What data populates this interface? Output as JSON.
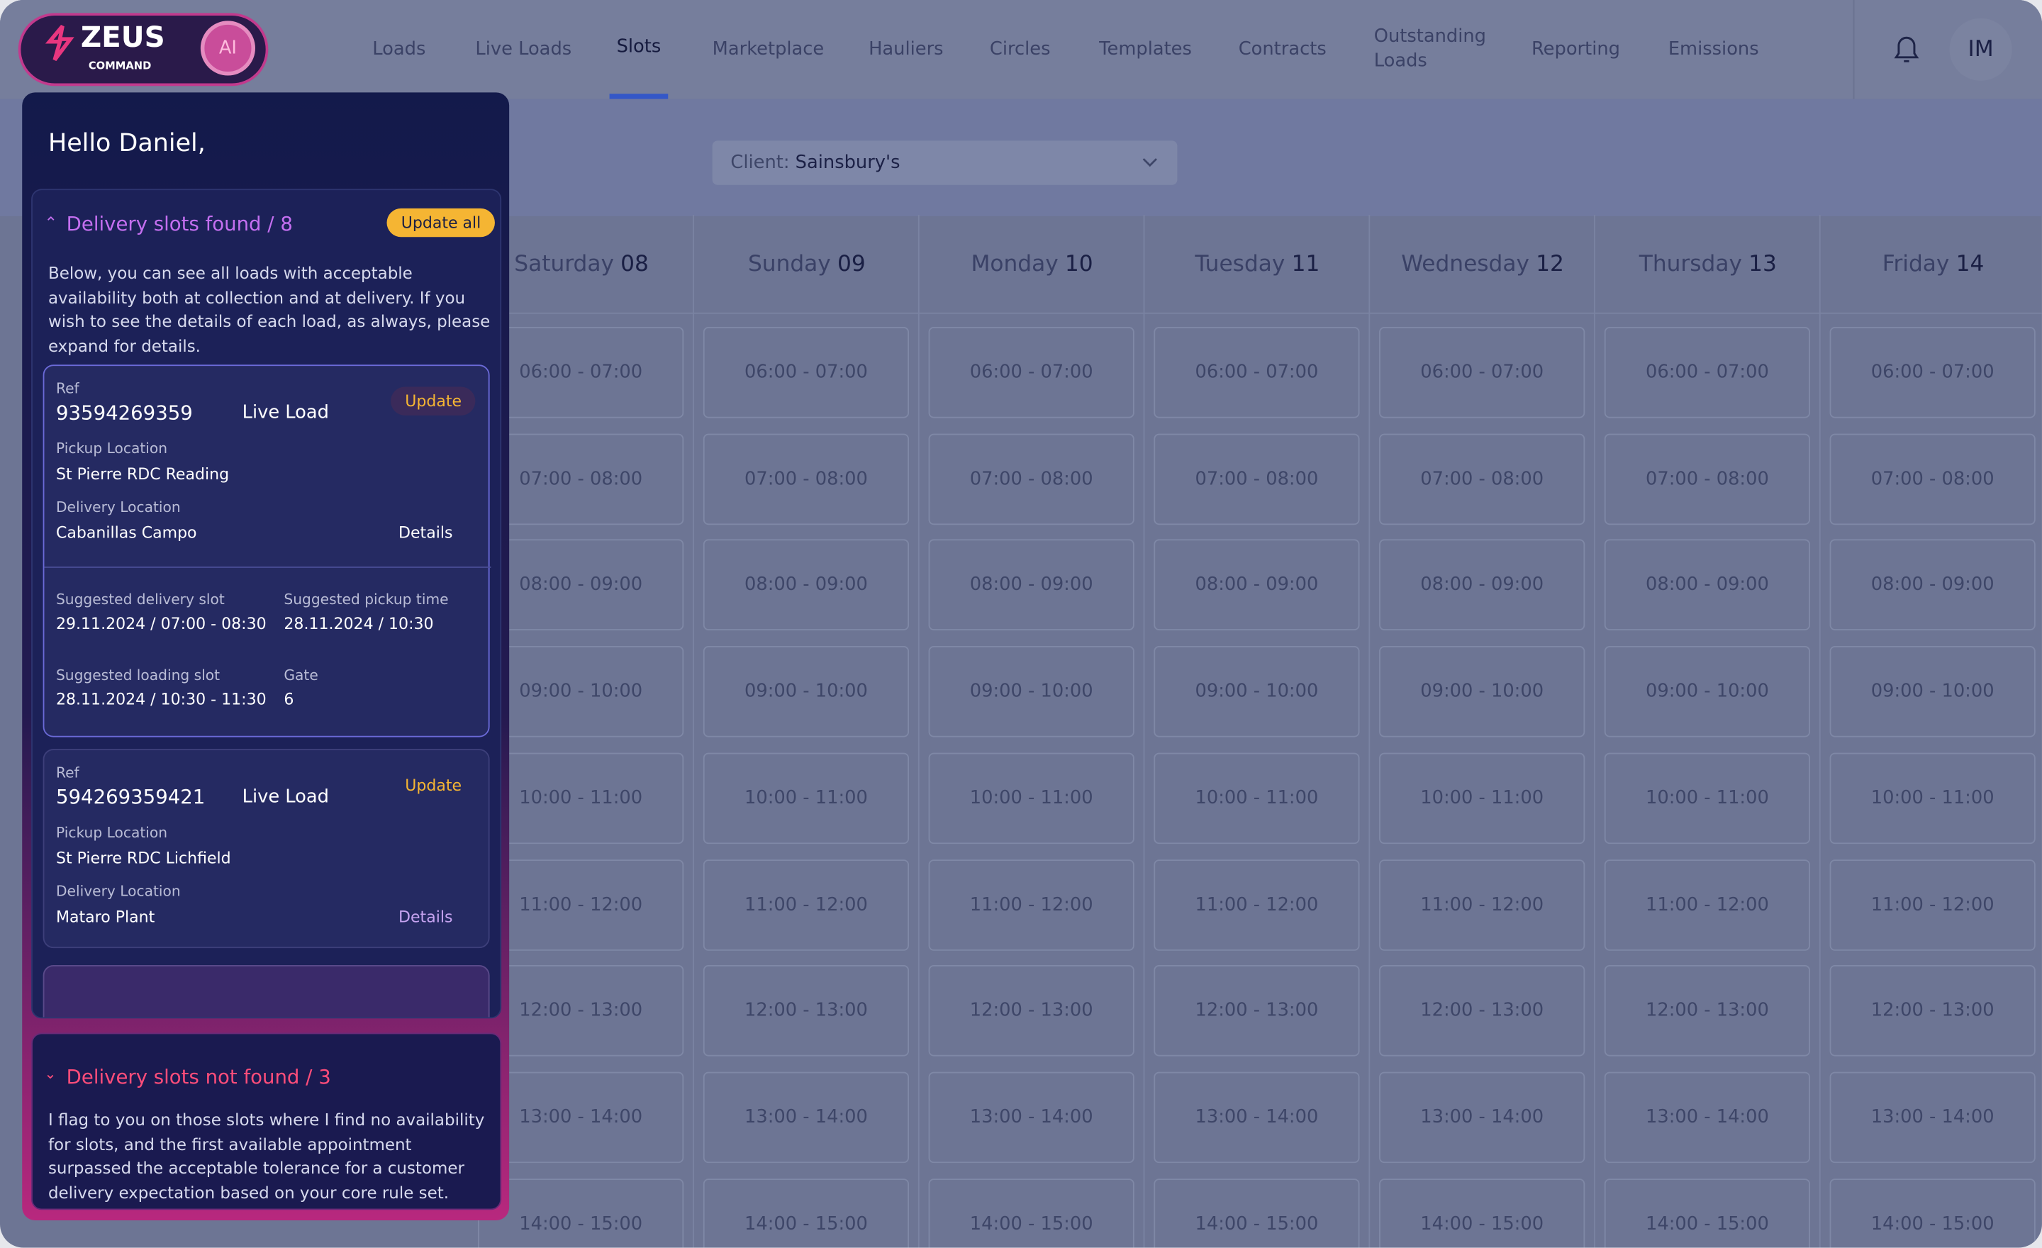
{
  "logo": {
    "name": "ZEUS",
    "sub": "COMMAND",
    "badge": "AI"
  },
  "nav": [
    "Loads",
    "Live Loads",
    "Slots",
    "Marketplace",
    "Hauliers",
    "Circles",
    "Templates",
    "Contracts",
    "Outstanding Loads",
    "Reporting",
    "Emissions"
  ],
  "user_initials": "IM",
  "client": {
    "label": "Client:",
    "value": "Sainsbury's"
  },
  "days": [
    {
      "name": "Saturday",
      "date": "08"
    },
    {
      "name": "Sunday",
      "date": "09"
    },
    {
      "name": "Monday",
      "date": "10"
    },
    {
      "name": "Tuesday",
      "date": "11"
    },
    {
      "name": "Wednesday",
      "date": "12"
    },
    {
      "name": "Thursday",
      "date": "13"
    },
    {
      "name": "Friday",
      "date": "14"
    }
  ],
  "slots": [
    "06:00 - 07:00",
    "07:00 - 08:00",
    "08:00 - 09:00",
    "09:00 - 10:00",
    "10:00 - 11:00",
    "11:00 - 12:00",
    "12:00 - 13:00",
    "13:00 - 14:00",
    "14:00 - 15:00"
  ],
  "panel": {
    "greeting": "Hello Daniel,",
    "found": {
      "title": "Delivery slots found / 8",
      "button": "Update all",
      "description": "Below, you can see all loads with acceptable availability both at collection and at delivery. If you wish to see the details of each load, as always, please expand for details.",
      "loads": [
        {
          "ref_label": "Ref",
          "ref": "93594269359",
          "type": "Live Load",
          "button": "Update",
          "pickup_label": "Pickup Location",
          "pickup": "St Pierre RDC Reading",
          "delivery_label": "Delivery Location",
          "delivery": "Cabanillas Campo",
          "details": "Details",
          "fields": [
            {
              "label": "Suggested delivery slot",
              "value": "29.11.2024 / 07:00 - 08:30"
            },
            {
              "label": "Suggested pickup time",
              "value": "28.11.2024 / 10:30"
            },
            {
              "label": "Suggested loading slot",
              "value": "28.11.2024 / 10:30 - 11:30"
            },
            {
              "label": "Gate",
              "value": "6"
            }
          ]
        },
        {
          "ref_label": "Ref",
          "ref": "594269359421",
          "type": "Live Load",
          "button": "Update",
          "pickup_label": "Pickup Location",
          "pickup": "St Pierre RDC Lichfield",
          "delivery_label": "Delivery Location",
          "delivery": "Mataro Plant",
          "details": "Details",
          "fields": []
        }
      ]
    },
    "not_found": {
      "title": "Delivery slots not found / 3",
      "description": "I flag to you on those slots where I find no availability for slots, and the first available appointment surpassed the acceptable tolerance for a customer delivery expectation based on your core rule set."
    }
  }
}
